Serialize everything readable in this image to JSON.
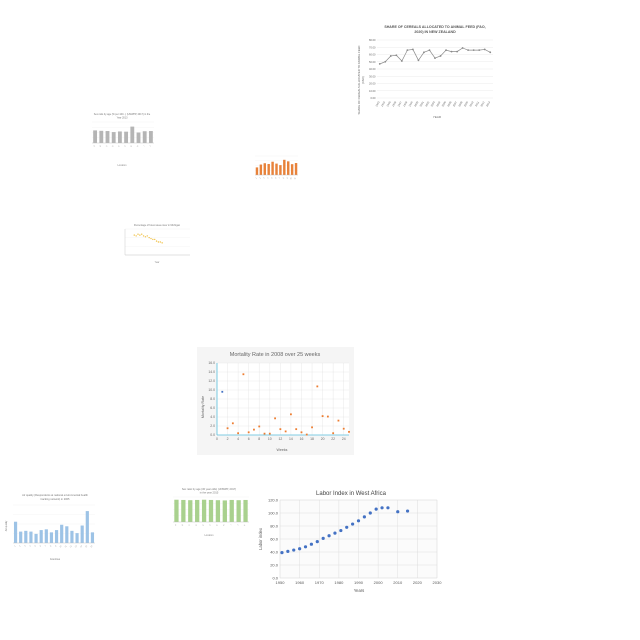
{
  "chart_data": [
    {
      "id": "cereals",
      "type": "line",
      "title_lines": [
        "SHARE OF CEREALS ALLOCATED TO ANIMAL FEED (FAO,",
        "2020) IN NEW ZEALAND"
      ],
      "xlabel": "YEAR",
      "ylabel_lines": [
        "SHARE OF CEREALS ALLOCATED TO ANIMAL FEED",
        "(FAO)"
      ],
      "categories": [
        "1993",
        "1994",
        "1995",
        "1996",
        "1997",
        "1998",
        "1999",
        "2000",
        "2001",
        "2002",
        "2003",
        "2004",
        "2005",
        "2006",
        "2007",
        "2008",
        "2009",
        "2010",
        "2011",
        "2012",
        "2013"
      ],
      "values": [
        47,
        50,
        58,
        59,
        51,
        66,
        67,
        52,
        63,
        66,
        55,
        58,
        66,
        64,
        64,
        69,
        66,
        66,
        66,
        67,
        63
      ],
      "ylim": [
        0,
        80
      ],
      "yticks": [
        "0.00",
        "10.00",
        "20.00",
        "30.00",
        "40.00",
        "50.00",
        "60.00",
        "70.00",
        "80.00"
      ],
      "colors": {
        "line": "#8a8a8a",
        "marker": "#8a8a8a"
      }
    },
    {
      "id": "grey-bars",
      "type": "bar",
      "title_lines": [
        "Sex ratio by age (% per 100...) (UNWPP, 2017) in the",
        "Year 2013"
      ],
      "xlabel": "Location",
      "categories": [
        "A",
        "B",
        "C",
        "D",
        "E",
        "F",
        "G",
        "H",
        "I",
        "J"
      ],
      "values": [
        60,
        58,
        57,
        52,
        55,
        54,
        78,
        50,
        56,
        57
      ],
      "ylim": [
        0,
        100
      ],
      "colors": {
        "bar": "#b5b5b5"
      }
    },
    {
      "id": "orange-bars",
      "type": "bar",
      "categories": [
        "1",
        "2",
        "3",
        "4",
        "5",
        "6",
        "7",
        "8",
        "9",
        "10",
        "11"
      ],
      "values": [
        40,
        55,
        62,
        58,
        70,
        60,
        52,
        80,
        72,
        57,
        63
      ],
      "ylim": [
        0,
        100
      ],
      "colors": {
        "bar": "#e8823a"
      }
    },
    {
      "id": "yellow-scatter",
      "type": "scatter",
      "title": "Percentage of forest area cover in Michigan",
      "xlabel": "Year",
      "x": [
        1990,
        1991,
        1992,
        1993,
        1994,
        1995,
        1996,
        1997,
        1998,
        1999,
        2000,
        2001,
        2002,
        2003,
        2004,
        2005
      ],
      "values": [
        53,
        52,
        54,
        53,
        54,
        52,
        51,
        52,
        50,
        49,
        48,
        48,
        46,
        45,
        45,
        44
      ],
      "xlim": [
        1985,
        2020
      ],
      "ylim": [
        30,
        60
      ],
      "colors": {
        "marker": "#f0c24a"
      }
    },
    {
      "id": "mortality",
      "type": "scatter",
      "title": "Mortality Rate in 2008 over 25 weeks",
      "xlabel": "Weeks",
      "ylabel": "Mortality Rate",
      "x": [
        1,
        2,
        3,
        4,
        5,
        6,
        7,
        8,
        9,
        10,
        11,
        12,
        13,
        14,
        15,
        16,
        17,
        18,
        19,
        20,
        21,
        22,
        23,
        24,
        25
      ],
      "values": [
        9.6,
        1.5,
        2.6,
        0.4,
        13.5,
        0.6,
        1.2,
        1.9,
        0.3,
        0.3,
        3.7,
        1.3,
        0.8,
        4.6,
        1.3,
        0.6,
        0.1,
        1.7,
        10.8,
        4.2,
        4.1,
        0.4,
        3.2,
        1.4,
        0.7
      ],
      "xlim": [
        0,
        25
      ],
      "ylim": [
        0,
        16
      ],
      "xticks": [
        0,
        2,
        4,
        6,
        8,
        10,
        12,
        14,
        16,
        18,
        20,
        22,
        24
      ],
      "yticks": [
        "0.0",
        "2.0",
        "4.0",
        "6.0",
        "8.0",
        "10.0",
        "12.0",
        "14.0",
        "16.0"
      ],
      "colors": {
        "blue_marker": "#4472c4",
        "orange_marker": "#ed7d31",
        "axis": "#5bc0de"
      }
    },
    {
      "id": "air-quality",
      "type": "bar",
      "title_lines": [
        "Air quality (Respondents at national environmental health",
        "tracking network) in 2005"
      ],
      "xlabel": "Countries",
      "ylabel": "Air quality",
      "categories": [
        "1",
        "2",
        "3",
        "4",
        "5",
        "6",
        "7",
        "8",
        "9",
        "10",
        "11",
        "12",
        "13",
        "14",
        "15",
        "16"
      ],
      "values": [
        28,
        15,
        16,
        15,
        12,
        17,
        18,
        14,
        17,
        24,
        22,
        16,
        13,
        23,
        42,
        14
      ],
      "ylim": [
        0,
        50
      ],
      "colors": {
        "bar": "#9dc3e6"
      }
    },
    {
      "id": "green-bars",
      "type": "bar",
      "title_lines": [
        "Sex ratio by age (30 year olds) (UNWPP, 2017)",
        "in the year 2015"
      ],
      "xlabel": "Location",
      "categories": [
        "A",
        "B",
        "C",
        "D",
        "E",
        "F",
        "G",
        "H",
        "I",
        "J",
        "K"
      ],
      "values": [
        98,
        97,
        96,
        97,
        98,
        97,
        96,
        95,
        97,
        96,
        97
      ],
      "ylim": [
        0,
        110
      ],
      "colors": {
        "bar": "#a9d18e"
      }
    },
    {
      "id": "labor",
      "type": "scatter",
      "title": "Labor Index in West Africa",
      "xlabel": "Years",
      "ylabel": "Labor index",
      "x": [
        1951,
        1954,
        1957,
        1960,
        1963,
        1966,
        1969,
        1972,
        1975,
        1978,
        1981,
        1984,
        1987,
        1990,
        1993,
        1996,
        1999,
        2002,
        2005,
        2010,
        2015
      ],
      "values": [
        39,
        41,
        43,
        45,
        48,
        52,
        56,
        61,
        65,
        69,
        73,
        78,
        83,
        88,
        94,
        100,
        106,
        108,
        108,
        102,
        103
      ],
      "xlim": [
        1950,
        2030
      ],
      "ylim": [
        0,
        120
      ],
      "xticks": [
        1950,
        1960,
        1970,
        1980,
        1990,
        2000,
        2010,
        2020,
        2030
      ],
      "yticks": [
        "0.0",
        "20.0",
        "40.0",
        "60.0",
        "80.0",
        "100.0",
        "120.0"
      ],
      "colors": {
        "marker": "#4472c4",
        "grid": "#d9d9d9"
      }
    }
  ]
}
